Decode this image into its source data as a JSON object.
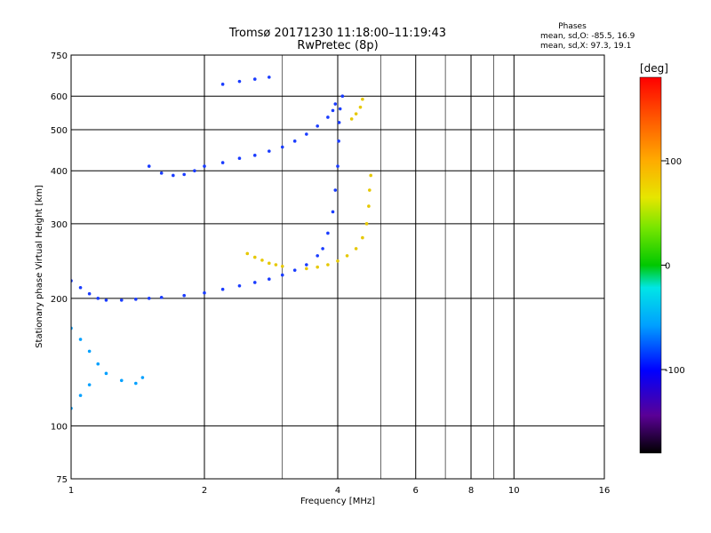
{
  "header": {
    "title": "Tromsø 20171230 11:18:00–11:19:43",
    "subtitle": "RwPretec (8p)"
  },
  "stats": {
    "heading": "Phases",
    "line_o": "mean, sd,O: -85.5, 16.9",
    "line_x": "mean, sd,X:  97.3, 19.1"
  },
  "chart_data": {
    "type": "scatter",
    "xlabel": "Frequency [MHz]",
    "ylabel": "Stationary phase Virtual Height [km]",
    "xscale": "log",
    "yscale": "log",
    "xlim": [
      1,
      16
    ],
    "ylim": [
      75,
      750
    ],
    "x_ticks": [
      1,
      2,
      4,
      6,
      8,
      10,
      16
    ],
    "x_tick_labels": [
      "1",
      "2",
      "4",
      "6",
      "8",
      "10",
      "16"
    ],
    "x_minor_grid": [
      3,
      5,
      7,
      9
    ],
    "y_ticks": [
      75,
      100,
      200,
      300,
      400,
      500,
      600,
      750
    ],
    "y_tick_labels": [
      "75",
      "100",
      "200",
      "300",
      "400",
      "500",
      "600",
      "750"
    ],
    "grid": true,
    "colorbar": {
      "label": "[deg]",
      "range": [
        -180,
        180
      ],
      "ticks": [
        100,
        0,
        -100
      ],
      "tick_labels": [
        "100",
        "0",
        "-100"
      ],
      "placement": "right"
    },
    "traces": [
      {
        "name": "",
        "phase": -100,
        "points": [
          [
            1.0,
            220
          ],
          [
            1.05,
            212
          ],
          [
            1.1,
            205
          ],
          [
            1.15,
            200
          ],
          [
            1.2,
            198
          ],
          [
            1.3,
            198
          ],
          [
            1.4,
            199
          ],
          [
            1.5,
            200
          ],
          [
            1.6,
            201
          ],
          [
            1.8,
            203
          ],
          [
            2.0,
            206
          ],
          [
            2.2,
            210
          ],
          [
            2.4,
            214
          ],
          [
            2.6,
            218
          ],
          [
            2.8,
            222
          ],
          [
            3.0,
            227
          ],
          [
            3.2,
            233
          ],
          [
            3.4,
            240
          ],
          [
            3.6,
            252
          ],
          [
            3.7,
            262
          ],
          [
            3.8,
            285
          ],
          [
            3.9,
            320
          ],
          [
            3.95,
            360
          ],
          [
            4.0,
            410
          ],
          [
            4.02,
            470
          ],
          [
            4.03,
            520
          ],
          [
            4.05,
            560
          ],
          [
            4.1,
            600
          ]
        ]
      },
      {
        "name": "",
        "phase": -100,
        "points": [
          [
            1.5,
            410
          ],
          [
            1.6,
            395
          ],
          [
            1.7,
            390
          ],
          [
            1.8,
            392
          ],
          [
            1.9,
            400
          ],
          [
            2.0,
            410
          ],
          [
            2.2,
            418
          ],
          [
            2.4,
            428
          ],
          [
            2.6,
            435
          ],
          [
            2.8,
            445
          ],
          [
            3.0,
            455
          ],
          [
            3.2,
            470
          ],
          [
            3.4,
            488
          ],
          [
            3.6,
            510
          ],
          [
            3.8,
            535
          ],
          [
            3.9,
            555
          ],
          [
            3.95,
            575
          ]
        ]
      },
      {
        "name": "",
        "phase": 110,
        "points": [
          [
            2.5,
            255
          ],
          [
            2.6,
            250
          ],
          [
            2.7,
            246
          ],
          [
            2.8,
            242
          ],
          [
            2.9,
            240
          ],
          [
            3.0,
            238
          ]
        ]
      },
      {
        "name": "",
        "phase": 110,
        "points": [
          [
            3.4,
            235
          ],
          [
            3.6,
            237
          ],
          [
            3.8,
            240
          ],
          [
            4.0,
            245
          ],
          [
            4.2,
            252
          ],
          [
            4.4,
            262
          ],
          [
            4.55,
            278
          ],
          [
            4.65,
            300
          ],
          [
            4.7,
            330
          ],
          [
            4.72,
            360
          ],
          [
            4.75,
            390
          ]
        ]
      },
      {
        "name": "",
        "phase": 110,
        "points": [
          [
            4.3,
            530
          ],
          [
            4.4,
            545
          ],
          [
            4.5,
            565
          ],
          [
            4.55,
            590
          ]
        ]
      },
      {
        "name": "",
        "phase": -60,
        "points": [
          [
            1.0,
            170
          ],
          [
            1.05,
            160
          ],
          [
            1.1,
            150
          ],
          [
            1.15,
            140
          ],
          [
            1.2,
            133
          ],
          [
            1.3,
            128
          ],
          [
            1.4,
            126
          ],
          [
            1.45,
            130
          ],
          [
            1.0,
            110
          ],
          [
            1.05,
            118
          ],
          [
            1.1,
            125
          ]
        ]
      },
      {
        "name": "",
        "phase": -100,
        "points": [
          [
            2.2,
            640
          ],
          [
            2.4,
            650
          ],
          [
            2.6,
            658
          ],
          [
            2.8,
            665
          ]
        ]
      }
    ]
  }
}
